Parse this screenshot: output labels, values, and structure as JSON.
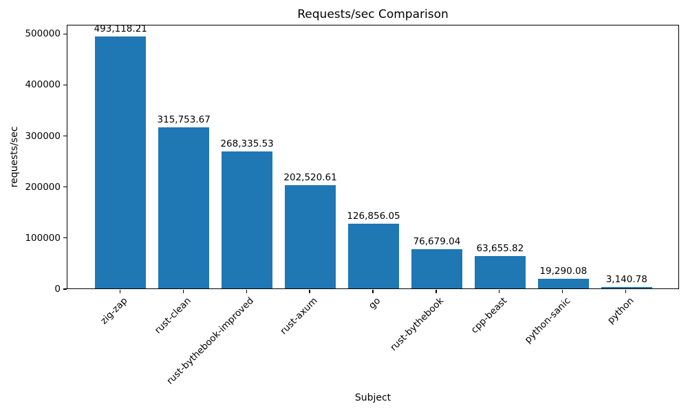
{
  "chart_data": {
    "type": "bar",
    "title": "Requests/sec Comparison",
    "xlabel": "Subject",
    "ylabel": "requests/sec",
    "categories": [
      "zig-zap",
      "rust-clean",
      "rust-bythebook-improved",
      "rust-axum",
      "go",
      "rust-bythebook",
      "cpp-beast",
      "python-sanic",
      "python"
    ],
    "values": [
      493118.21,
      315753.67,
      268335.53,
      202520.61,
      126856.05,
      76679.04,
      63655.82,
      19290.08,
      3140.78
    ],
    "value_labels": [
      "493,118.21",
      "315,753.67",
      "268,335.53",
      "202,520.61",
      "126,856.05",
      "76,679.04",
      "63,655.82",
      "19,290.08",
      "3,140.78"
    ],
    "yticks": [
      0,
      100000,
      200000,
      300000,
      400000,
      500000
    ],
    "ytick_labels": [
      "0",
      "100000",
      "200000",
      "300000",
      "400000",
      "500000"
    ],
    "ylim": [
      0,
      517774
    ],
    "bar_color": "#1f77b4",
    "grid": false,
    "legend": null,
    "x_tick_rotation_deg": 45
  }
}
